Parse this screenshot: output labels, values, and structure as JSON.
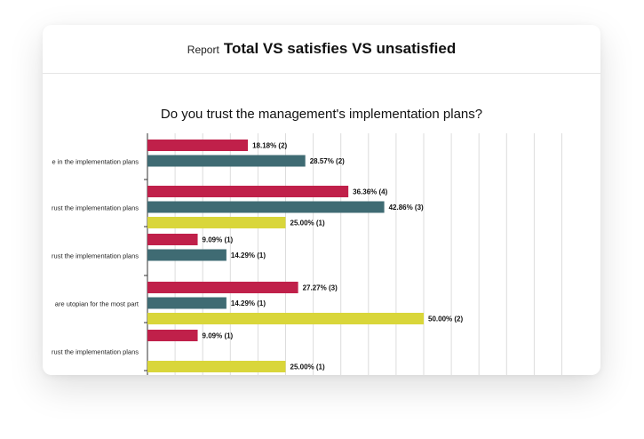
{
  "header": {
    "report_label": "Report",
    "title": "Total VS satisfies VS unsatisfied"
  },
  "chart_data": {
    "type": "bar",
    "orientation": "horizontal",
    "title": "Do you trust the management's implementation plans?",
    "categories": [
      "e in the implementation plans",
      "rust the implementation plans",
      "rust the implementation plans",
      "are utopian for the most part",
      "rust the implementation plans"
    ],
    "series": [
      {
        "color": "#c0204a",
        "values": [
          18.18,
          36.36,
          9.09,
          27.27,
          9.09
        ],
        "counts": [
          2,
          4,
          1,
          3,
          1
        ],
        "labels": [
          "18.18% (2)",
          "36.36% (4)",
          "9.09% (1)",
          "27.27% (3)",
          "9.09% (1)"
        ]
      },
      {
        "color": "#3f6b73",
        "values": [
          28.57,
          42.86,
          14.29,
          14.29,
          null
        ],
        "counts": [
          2,
          3,
          1,
          1,
          null
        ],
        "labels": [
          "28.57% (2)",
          "42.86% (3)",
          "14.29% (1)",
          "14.29% (1)",
          null
        ]
      },
      {
        "color": "#d9d63a",
        "values": [
          null,
          25.0,
          null,
          50.0,
          25.0
        ],
        "counts": [
          null,
          1,
          null,
          2,
          1
        ],
        "labels": [
          null,
          "25.00% (1)",
          null,
          "50.00% (2)",
          "25.00% (1)"
        ]
      }
    ],
    "xlim": [
      0,
      100
    ],
    "grid": true
  }
}
